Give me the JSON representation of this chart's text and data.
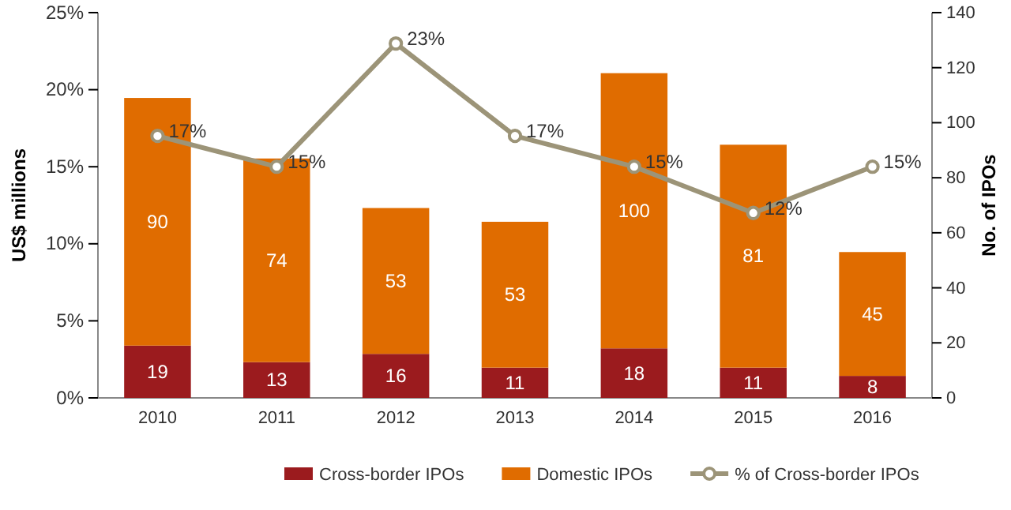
{
  "chart_data": {
    "type": "bar",
    "stacked": true,
    "ylabel": "US$ millions",
    "y2label": "No. of IPOs",
    "categories": [
      "2010",
      "2011",
      "2012",
      "2013",
      "2014",
      "2015",
      "2016"
    ],
    "series": [
      {
        "name": "Cross-border IPOs",
        "color": "#9b1b1e",
        "axis": "y2",
        "values": [
          19,
          13,
          16,
          11,
          18,
          11,
          8
        ],
        "value_labels": [
          "19",
          "13",
          "16",
          "11",
          "18",
          "11",
          "8"
        ]
      },
      {
        "name": "Domestic IPOs",
        "color": "#e06c00",
        "axis": "y2",
        "values": [
          90,
          74,
          53,
          53,
          100,
          81,
          45
        ],
        "value_labels": [
          "90",
          "74",
          "53",
          "53",
          "100",
          "81",
          "45"
        ]
      },
      {
        "name": "% of Cross-border IPOs",
        "type": "line",
        "color": "#9c9478",
        "axis": "y",
        "marker": "circle",
        "values": [
          17,
          15,
          23,
          17,
          15,
          12,
          15
        ],
        "value_labels": [
          "17%",
          "15%",
          "23%",
          "17%",
          "15%",
          "12%",
          "15%"
        ]
      }
    ],
    "ylim": [
      0,
      25
    ],
    "yticks": [
      {
        "value": 0,
        "label": "0%"
      },
      {
        "value": 5,
        "label": "5%"
      },
      {
        "value": 10,
        "label": "10%"
      },
      {
        "value": 15,
        "label": "15%"
      },
      {
        "value": 20,
        "label": "20%"
      },
      {
        "value": 25,
        "label": "25%"
      }
    ],
    "y2lim": [
      0,
      140
    ],
    "y2ticks": [
      0,
      20,
      40,
      60,
      80,
      100,
      120,
      140
    ],
    "legend": "bottom",
    "grid": false
  }
}
